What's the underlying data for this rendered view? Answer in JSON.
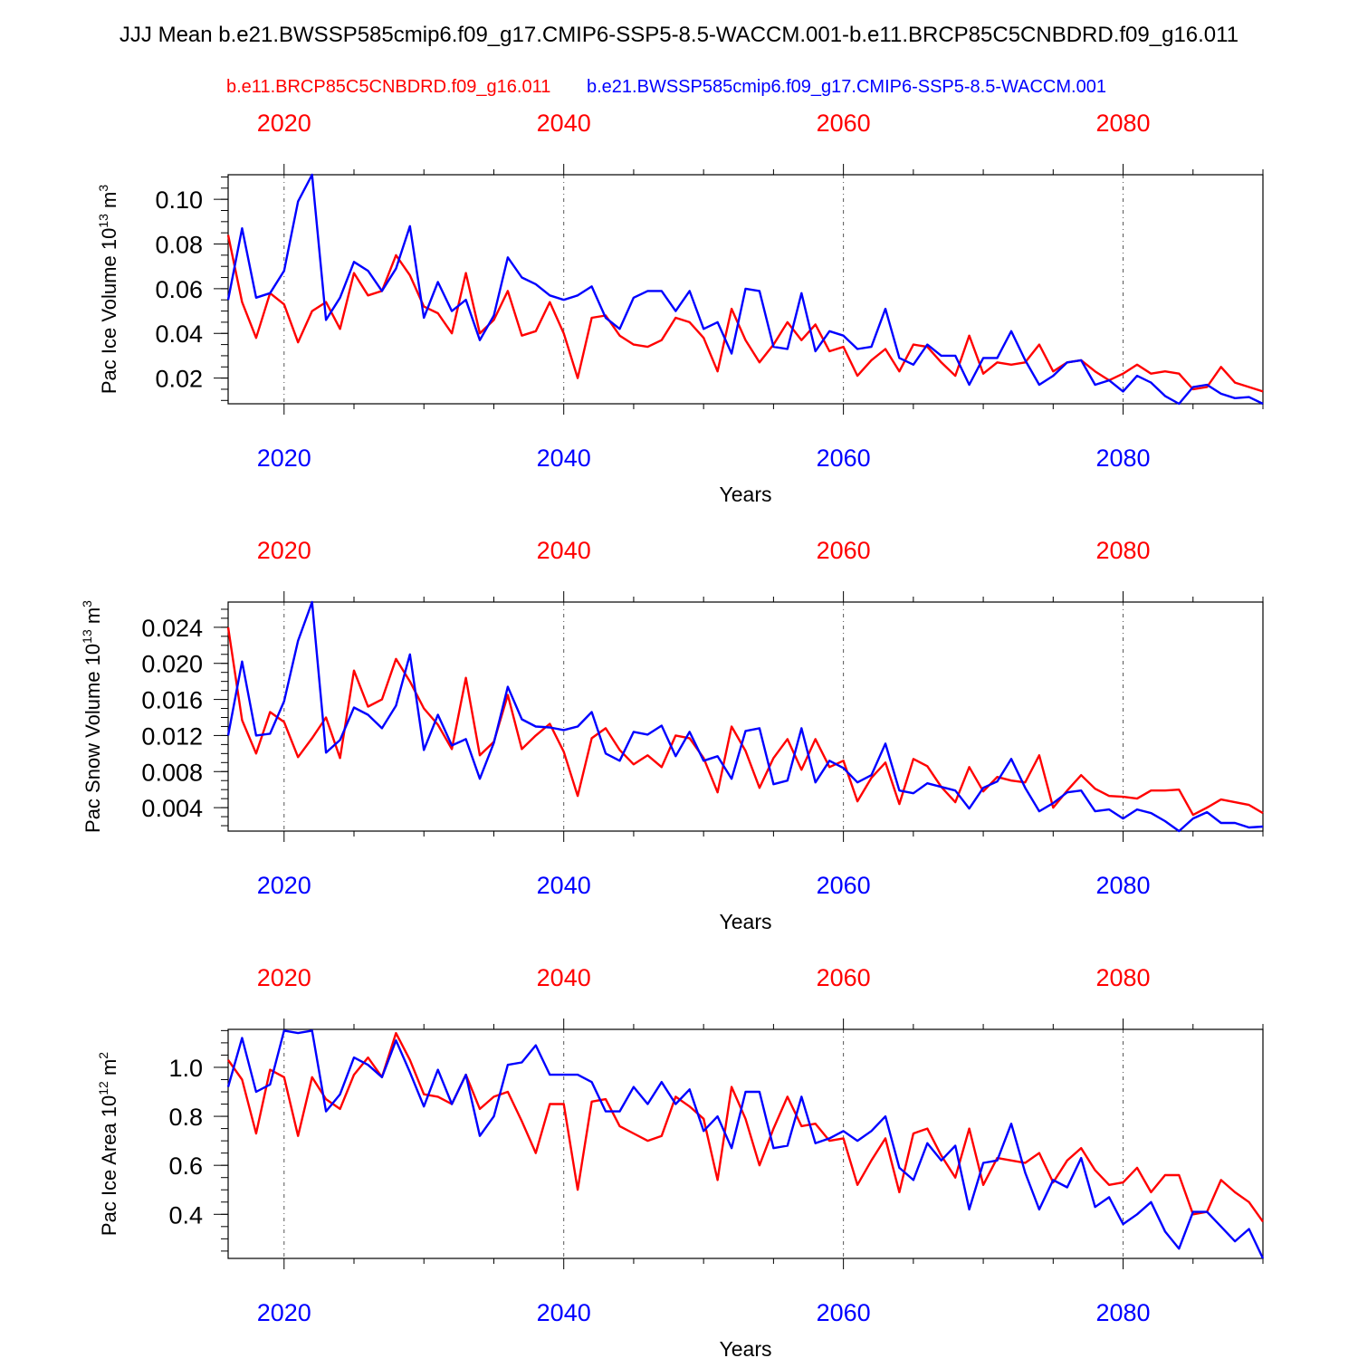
{
  "figure": {
    "title": "JJJ Mean b.e21.BWSSP585cmip6.f09_g17.CMIP6-SSP5-8.5-WACCM.001-b.e11.BRCP85C5CNBDRD.f09_g16.011",
    "legend_red": "b.e11.BRCP85C5CNBDRD.f09_g16.011",
    "legend_blue": "b.e21.BWSSP585cmip6.f09_g17.CMIP6-SSP5-8.5-WACCM.001",
    "colors": {
      "red": "#ff0000",
      "blue": "#0000ff"
    }
  },
  "chart_data": [
    {
      "type": "line",
      "ylabel": "Pac Ice Volume 10",
      "yunit_exp": "13",
      "yunit_tail": "m",
      "yunit_tail_exp": "3",
      "xlabel": "Years",
      "xlim": [
        2016,
        2090
      ],
      "ylim": [
        0.0085,
        0.111
      ],
      "yticks": [
        0.02,
        0.04,
        0.06,
        0.08,
        0.1
      ],
      "ytick_labels": [
        "0.02",
        "0.04",
        "0.06",
        "0.08",
        "0.10"
      ],
      "yminor_step": 0.005,
      "xticks": [
        2020,
        2040,
        2060,
        2080
      ],
      "xtick_labels": [
        "2020",
        "2040",
        "2060",
        "2080"
      ],
      "x_start": 2016,
      "series": [
        {
          "name": "b.e11.BRCP85C5CNBDRD.f09_g16.011",
          "color": "#ff0000",
          "values": [
            0.084,
            0.054,
            0.038,
            0.058,
            0.053,
            0.036,
            0.05,
            0.054,
            0.042,
            0.067,
            0.057,
            0.059,
            0.075,
            0.066,
            0.052,
            0.049,
            0.04,
            0.067,
            0.04,
            0.046,
            0.059,
            0.039,
            0.041,
            0.054,
            0.04,
            0.02,
            0.047,
            0.048,
            0.039,
            0.035,
            0.034,
            0.037,
            0.047,
            0.045,
            0.038,
            0.023,
            0.051,
            0.037,
            0.027,
            0.035,
            0.045,
            0.037,
            0.044,
            0.032,
            0.034,
            0.021,
            0.028,
            0.033,
            0.023,
            0.035,
            0.034,
            0.027,
            0.021,
            0.039,
            0.022,
            0.027,
            0.026,
            0.027,
            0.035,
            0.023,
            0.027,
            0.028,
            0.023,
            0.019,
            0.022,
            0.026,
            0.022,
            0.023,
            0.022,
            0.015,
            0.016,
            0.025,
            0.018,
            0.016,
            0.014
          ]
        },
        {
          "name": "b.e21.BWSSP585cmip6.f09_g17.CMIP6-SSP5-8.5-WACCM.001",
          "color": "#0000ff",
          "values": [
            0.055,
            0.087,
            0.056,
            0.058,
            0.068,
            0.099,
            0.111,
            0.046,
            0.056,
            0.072,
            0.068,
            0.059,
            0.069,
            0.088,
            0.047,
            0.063,
            0.05,
            0.055,
            0.037,
            0.048,
            0.074,
            0.065,
            0.062,
            0.057,
            0.055,
            0.057,
            0.061,
            0.047,
            0.042,
            0.056,
            0.059,
            0.059,
            0.05,
            0.059,
            0.042,
            0.045,
            0.031,
            0.06,
            0.059,
            0.034,
            0.033,
            0.058,
            0.032,
            0.041,
            0.039,
            0.033,
            0.034,
            0.051,
            0.029,
            0.026,
            0.035,
            0.03,
            0.03,
            0.017,
            0.029,
            0.029,
            0.041,
            0.028,
            0.017,
            0.021,
            0.027,
            0.028,
            0.017,
            0.019,
            0.014,
            0.021,
            0.018,
            0.012,
            0.0085,
            0.016,
            0.017,
            0.013,
            0.011,
            0.0115,
            0.0085
          ]
        }
      ]
    },
    {
      "type": "line",
      "ylabel": "Pac Snow Volume 10",
      "yunit_exp": "13",
      "yunit_tail": "m",
      "yunit_tail_exp": "3",
      "xlabel": "Years",
      "xlim": [
        2016,
        2090
      ],
      "ylim": [
        0.0014,
        0.0268
      ],
      "yticks": [
        0.004,
        0.008,
        0.012,
        0.016,
        0.02,
        0.024
      ],
      "ytick_labels": [
        "0.004",
        "0.008",
        "0.012",
        "0.016",
        "0.020",
        "0.024"
      ],
      "yminor_step": 0.001,
      "xticks": [
        2020,
        2040,
        2060,
        2080
      ],
      "xtick_labels": [
        "2020",
        "2040",
        "2060",
        "2080"
      ],
      "x_start": 2016,
      "series": [
        {
          "name": "b.e11.BRCP85C5CNBDRD.f09_g16.011",
          "color": "#ff0000",
          "values": [
            0.024,
            0.0137,
            0.01,
            0.0146,
            0.0135,
            0.0096,
            0.0117,
            0.014,
            0.0095,
            0.0192,
            0.0152,
            0.016,
            0.0205,
            0.018,
            0.015,
            0.0132,
            0.0105,
            0.0184,
            0.0098,
            0.0113,
            0.0165,
            0.0105,
            0.012,
            0.0133,
            0.0102,
            0.0053,
            0.0117,
            0.0128,
            0.0104,
            0.0088,
            0.0098,
            0.0085,
            0.012,
            0.0117,
            0.0095,
            0.0057,
            0.013,
            0.0103,
            0.0062,
            0.0095,
            0.0116,
            0.0082,
            0.0116,
            0.0085,
            0.0092,
            0.0047,
            0.0073,
            0.009,
            0.0044,
            0.0094,
            0.0086,
            0.0063,
            0.0046,
            0.0085,
            0.0058,
            0.0074,
            0.007,
            0.0068,
            0.0098,
            0.004,
            0.0059,
            0.0076,
            0.0061,
            0.0053,
            0.0052,
            0.005,
            0.0059,
            0.0059,
            0.006,
            0.0032,
            0.004,
            0.0049,
            0.0046,
            0.0043,
            0.0034
          ]
        },
        {
          "name": "b.e21.BWSSP585cmip6.f09_g17.CMIP6-SSP5-8.5-WACCM.001",
          "color": "#0000ff",
          "values": [
            0.012,
            0.0202,
            0.012,
            0.0122,
            0.0158,
            0.0225,
            0.0268,
            0.0101,
            0.0115,
            0.0151,
            0.0143,
            0.0128,
            0.0153,
            0.021,
            0.0104,
            0.0143,
            0.0109,
            0.0116,
            0.0072,
            0.0112,
            0.0174,
            0.0138,
            0.013,
            0.0129,
            0.0126,
            0.013,
            0.0146,
            0.01,
            0.0092,
            0.0124,
            0.0121,
            0.0131,
            0.0097,
            0.0124,
            0.0092,
            0.0097,
            0.0072,
            0.0125,
            0.0128,
            0.0066,
            0.007,
            0.0128,
            0.0068,
            0.0092,
            0.0084,
            0.0068,
            0.0076,
            0.0111,
            0.0059,
            0.0056,
            0.0067,
            0.0063,
            0.0059,
            0.0039,
            0.0062,
            0.0069,
            0.0094,
            0.0062,
            0.0036,
            0.0045,
            0.0057,
            0.0059,
            0.0036,
            0.0038,
            0.0028,
            0.0038,
            0.0034,
            0.0025,
            0.0014,
            0.0028,
            0.0035,
            0.0023,
            0.0023,
            0.0018,
            0.0019
          ]
        }
      ]
    },
    {
      "type": "line",
      "ylabel": "Pac Ice Area 10",
      "yunit_exp": "12",
      "yunit_tail": "m",
      "yunit_tail_exp": "2",
      "xlabel": "Years",
      "xlim": [
        2016,
        2090
      ],
      "ylim": [
        0.22,
        1.155
      ],
      "yticks": [
        0.4,
        0.6,
        0.8,
        1.0
      ],
      "ytick_labels": [
        "0.4",
        "0.6",
        "0.8",
        "1.0"
      ],
      "yminor_step": 0.05,
      "xticks": [
        2020,
        2040,
        2060,
        2080
      ],
      "xtick_labels": [
        "2020",
        "2040",
        "2060",
        "2080"
      ],
      "x_start": 2016,
      "series": [
        {
          "name": "b.e11.BRCP85C5CNBDRD.f09_g16.011",
          "color": "#ff0000",
          "values": [
            1.03,
            0.95,
            0.73,
            0.99,
            0.96,
            0.72,
            0.96,
            0.87,
            0.83,
            0.97,
            1.04,
            0.96,
            1.14,
            1.03,
            0.89,
            0.88,
            0.85,
            0.97,
            0.83,
            0.88,
            0.9,
            0.78,
            0.65,
            0.85,
            0.85,
            0.5,
            0.86,
            0.87,
            0.76,
            0.73,
            0.7,
            0.72,
            0.88,
            0.84,
            0.79,
            0.54,
            0.92,
            0.79,
            0.6,
            0.75,
            0.88,
            0.76,
            0.77,
            0.7,
            0.71,
            0.52,
            0.62,
            0.71,
            0.49,
            0.73,
            0.75,
            0.64,
            0.55,
            0.75,
            0.52,
            0.63,
            0.62,
            0.61,
            0.65,
            0.53,
            0.62,
            0.67,
            0.58,
            0.52,
            0.53,
            0.59,
            0.49,
            0.56,
            0.56,
            0.4,
            0.41,
            0.54,
            0.49,
            0.45,
            0.37
          ]
        },
        {
          "name": "b.e21.BWSSP585cmip6.f09_g17.CMIP6-SSP5-8.5-WACCM.001",
          "color": "#0000ff",
          "values": [
            0.92,
            1.12,
            0.9,
            0.93,
            1.15,
            1.14,
            1.15,
            0.82,
            0.89,
            1.04,
            1.01,
            0.96,
            1.11,
            0.98,
            0.84,
            0.99,
            0.85,
            0.97,
            0.72,
            0.8,
            1.01,
            1.02,
            1.09,
            0.97,
            0.97,
            0.97,
            0.94,
            0.82,
            0.82,
            0.92,
            0.85,
            0.94,
            0.85,
            0.91,
            0.74,
            0.8,
            0.67,
            0.9,
            0.9,
            0.67,
            0.68,
            0.88,
            0.69,
            0.71,
            0.74,
            0.7,
            0.74,
            0.8,
            0.59,
            0.54,
            0.69,
            0.62,
            0.68,
            0.42,
            0.61,
            0.62,
            0.77,
            0.57,
            0.42,
            0.54,
            0.51,
            0.63,
            0.43,
            0.47,
            0.36,
            0.4,
            0.45,
            0.33,
            0.26,
            0.41,
            0.41,
            0.35,
            0.29,
            0.34,
            0.22
          ]
        }
      ]
    }
  ]
}
